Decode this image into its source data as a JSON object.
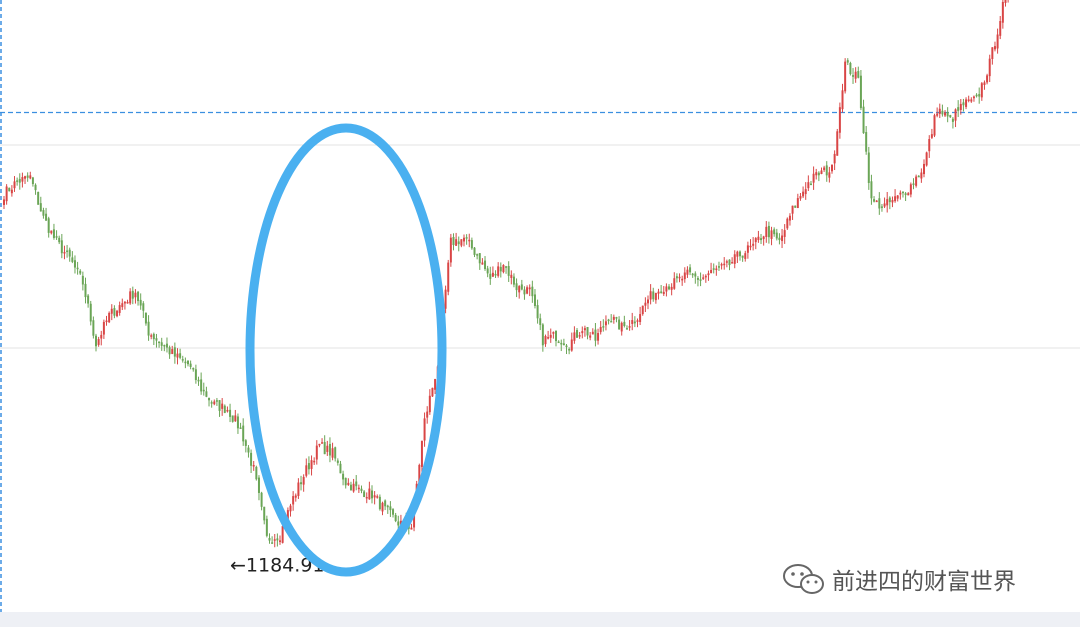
{
  "chart_data": {
    "type": "candlestick",
    "title": "",
    "xlabel": "",
    "ylabel": "",
    "ylim": [
      1100,
      1900
    ],
    "grid": true,
    "horizontal_gridlines": [
      1700,
      1450
    ],
    "dashed_price_line": 1740,
    "colors": {
      "up": "#d94545",
      "down": "#6aa556",
      "dashed": "#3b8fe0",
      "ellipse": "#4ab0f0"
    },
    "annotations": [
      {
        "text": "←1184.91",
        "value": 1184.91
      }
    ],
    "highlight": "ellipse around the bottom and the sharp rebound",
    "close_path": [
      1640,
      1655,
      1660,
      1610,
      1580,
      1560,
      1530,
      1455,
      1490,
      1505,
      1520,
      1470,
      1455,
      1440,
      1430,
      1400,
      1380,
      1375,
      1350,
      1300,
      1215,
      1220,
      1265,
      1300,
      1330,
      1320,
      1285,
      1275,
      1270,
      1250,
      1235,
      1230,
      1360,
      1430,
      1580,
      1585,
      1565,
      1535,
      1555,
      1525,
      1520,
      1460,
      1465,
      1455,
      1475,
      1460,
      1490,
      1475,
      1485,
      1510,
      1525,
      1530,
      1540,
      1535,
      1545,
      1550,
      1565,
      1575,
      1595,
      1580,
      1620,
      1650,
      1665,
      1670,
      1800,
      1780,
      1630,
      1625,
      1635,
      1650,
      1675,
      1745,
      1730,
      1750,
      1755,
      1800,
      1870,
      1905
    ]
  },
  "watermark": {
    "icon": "wechat-icon",
    "text": "前进四的财富世界"
  }
}
